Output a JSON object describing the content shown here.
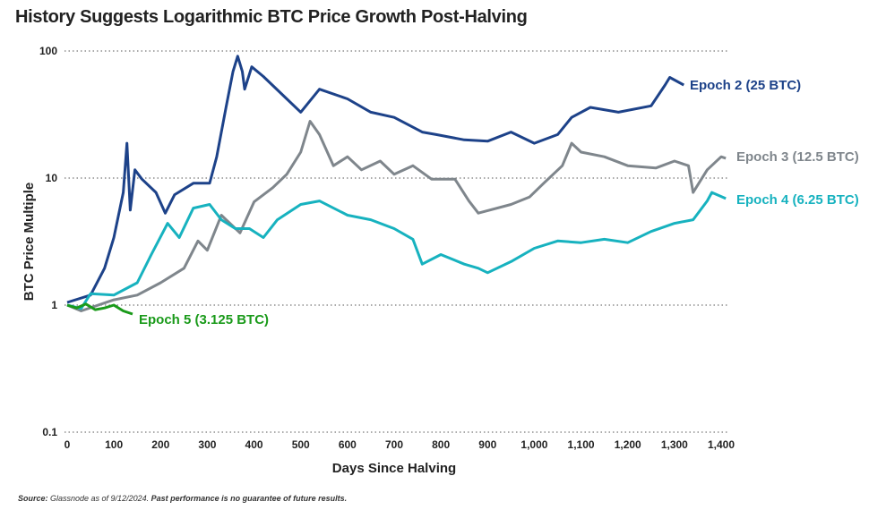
{
  "chart_data": {
    "type": "line",
    "title": "History Suggests Logarithmic BTC Price Growth Post-Halving",
    "xlabel": "Days Since Halving",
    "ylabel": "BTC Price Multiple",
    "xlim": [
      0,
      1400
    ],
    "ylim": [
      0.1,
      100
    ],
    "yscale": "log",
    "grid": "horizontal dotted",
    "xticks": [
      0,
      100,
      200,
      300,
      400,
      500,
      600,
      700,
      800,
      900,
      1000,
      1100,
      1200,
      1300,
      1400
    ],
    "xtick_labels": [
      "0",
      "100",
      "200",
      "300",
      "400",
      "500",
      "600",
      "700",
      "800",
      "900",
      "1,000",
      "1,100",
      "1,200",
      "1,300",
      "1,400"
    ],
    "yticks": [
      0.1,
      1,
      10,
      100
    ],
    "ytick_labels": [
      "0.1",
      "1",
      "10",
      "100"
    ],
    "legend": "inline labels at line ends",
    "series": [
      {
        "name": "Epoch 2 (25 BTC)",
        "color": "#1d4289",
        "x": [
          0,
          50,
          80,
          100,
          120,
          128,
          135,
          145,
          160,
          190,
          210,
          230,
          270,
          305,
          320,
          340,
          355,
          365,
          375,
          380,
          395,
          420,
          470,
          500,
          540,
          600,
          650,
          700,
          760,
          790,
          850,
          900,
          950,
          1000,
          1050,
          1080,
          1120,
          1180,
          1250,
          1280,
          1290,
          1320
        ],
        "y": [
          1.05,
          1.2,
          1.95,
          3.4,
          7.7,
          18.8,
          5.6,
          11.6,
          9.8,
          7.7,
          5.3,
          7.4,
          9.1,
          9.1,
          14.7,
          36,
          69,
          91,
          69,
          50,
          75,
          63,
          42,
          33,
          50,
          42,
          33,
          30,
          23,
          22,
          20,
          19.5,
          23,
          18.8,
          22,
          30,
          36,
          33,
          37,
          54,
          62,
          54
        ]
      },
      {
        "name": "Epoch 3 (12.5 BTC)",
        "color": "#7f868c",
        "x": [
          0,
          30,
          100,
          150,
          200,
          250,
          280,
          300,
          330,
          370,
          400,
          440,
          470,
          500,
          520,
          540,
          570,
          600,
          630,
          670,
          700,
          740,
          780,
          830,
          860,
          880,
          950,
          990,
          1020,
          1060,
          1080,
          1100,
          1150,
          1200,
          1260,
          1300,
          1330,
          1340,
          1370,
          1400,
          1410
        ],
        "y": [
          1.0,
          0.9,
          1.1,
          1.2,
          1.5,
          1.95,
          3.2,
          2.7,
          5.1,
          3.7,
          6.5,
          8.4,
          10.7,
          16,
          28,
          22,
          12.5,
          14.7,
          11.6,
          13.6,
          10.7,
          12.5,
          9.8,
          9.8,
          6.6,
          5.3,
          6.2,
          7.1,
          9.1,
          12.5,
          18.8,
          16,
          14.7,
          12.5,
          12,
          13.6,
          12.5,
          7.7,
          11.6,
          14.7,
          14.3
        ]
      },
      {
        "name": "Epoch 4 (6.25 BTC)",
        "color": "#17b2bf",
        "x": [
          0,
          30,
          50,
          100,
          150,
          180,
          215,
          240,
          270,
          305,
          330,
          360,
          390,
          420,
          450,
          500,
          540,
          600,
          650,
          700,
          740,
          760,
          800,
          850,
          880,
          900,
          950,
          1000,
          1050,
          1100,
          1150,
          1200,
          1250,
          1300,
          1340,
          1370,
          1380,
          1410
        ],
        "y": [
          1.0,
          0.94,
          1.23,
          1.2,
          1.5,
          2.5,
          4.4,
          3.4,
          5.8,
          6.2,
          4.7,
          4.0,
          4.0,
          3.4,
          4.7,
          6.2,
          6.6,
          5.1,
          4.7,
          4.0,
          3.3,
          2.1,
          2.5,
          2.1,
          1.95,
          1.8,
          2.2,
          2.8,
          3.2,
          3.1,
          3.3,
          3.1,
          3.8,
          4.4,
          4.7,
          6.6,
          7.7,
          6.9
        ]
      },
      {
        "name": "Epoch 5 (3.125 BTC)",
        "color": "#1a9a1a",
        "x": [
          0,
          20,
          40,
          60,
          80,
          100,
          120,
          140
        ],
        "y": [
          1.0,
          0.95,
          1.02,
          0.92,
          0.95,
          1.0,
          0.9,
          0.85
        ]
      }
    ]
  },
  "source": {
    "label": "Source:",
    "text": " Glassnode as of 9/12/2024.",
    "disclaimer": " Past performance is no guarantee of future results."
  }
}
